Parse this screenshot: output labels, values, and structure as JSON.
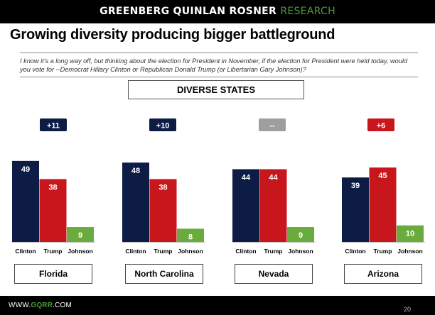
{
  "header": {
    "brand_primary": "GREENBERG QUINLAN ROSNER",
    "brand_secondary": "RESEARCH"
  },
  "slide": {
    "title": "Growing diversity producing bigger battleground",
    "question": "I know it's a long way off, but thinking about the election for President in November, if the election for President were held today, would you vote for --Democrat Hillary Clinton or Republican Donald Trump (or Libertarian Gary Johnson)?",
    "section_label": "DIVERSE STATES"
  },
  "footer": {
    "url_prefix": "WWW.",
    "url_brand": "GQRR",
    "url_suffix": ".COM",
    "page_number": "20"
  },
  "colors": {
    "clinton": "#0c1c45",
    "trump": "#c8161d",
    "johnson": "#6aab3e",
    "margin_dem": "#0c1c45",
    "margin_rep": "#c8161d",
    "margin_tie": "#9e9e9e"
  },
  "chart_data": {
    "type": "bar",
    "title": "DIVERSE STATES",
    "categories": [
      "Clinton",
      "Trump",
      "Johnson"
    ],
    "ylim": [
      0,
      60
    ],
    "groups": [
      {
        "state": "Florida",
        "values": [
          49,
          38,
          9
        ],
        "margin": "+11",
        "margin_party": "dem"
      },
      {
        "state": "North Carolina",
        "values": [
          48,
          38,
          8
        ],
        "margin": "+10",
        "margin_party": "dem"
      },
      {
        "state": "Nevada",
        "values": [
          44,
          44,
          9
        ],
        "margin": "--",
        "margin_party": "tie"
      },
      {
        "state": "Arizona",
        "values": [
          39,
          45,
          10
        ],
        "margin": "+6",
        "margin_party": "rep"
      }
    ]
  }
}
